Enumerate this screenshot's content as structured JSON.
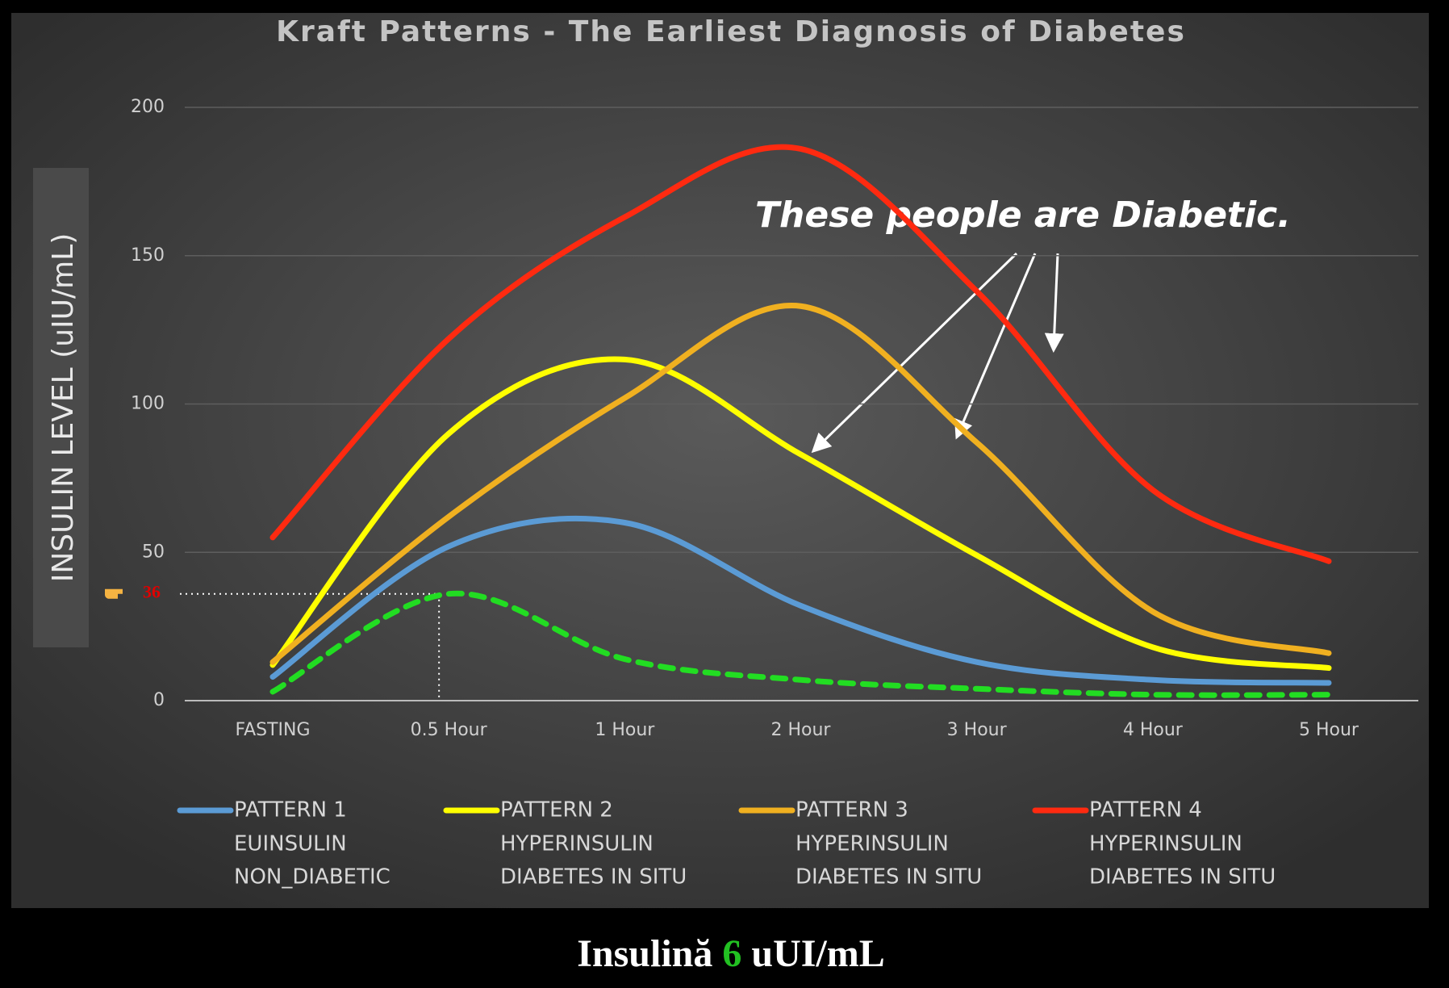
{
  "chart_data": {
    "type": "line",
    "title": "Kraft Patterns - The Earliest Diagnosis of Diabetes",
    "y_label": "INSULIN LEVEL (uIU/mL)",
    "categories": [
      "FASTING",
      "0.5 Hour",
      "1 Hour",
      "2 Hour",
      "3 Hour",
      "4 Hour",
      "5 Hour"
    ],
    "ylim": [
      0,
      200
    ],
    "yticks": [
      0,
      50,
      100,
      150,
      200
    ],
    "grid": true,
    "series": [
      {
        "name": "PATTERN 1",
        "lines": [
          "EUINSULIN",
          "NON_DIABETIC"
        ],
        "color": "#5b9bd5",
        "values": [
          8,
          52,
          60,
          32,
          13,
          7,
          6
        ]
      },
      {
        "name": "PATTERN 2",
        "lines": [
          "HYPERINSULIN",
          "DIABETES IN SITU"
        ],
        "color": "#ffff00",
        "values": [
          12,
          90,
          115,
          83,
          49,
          18,
          11
        ]
      },
      {
        "name": "PATTERN 3",
        "lines": [
          "HYPERINSULIN",
          "DIABETES IN SITU"
        ],
        "color": "#f0b020",
        "values": [
          13,
          62,
          102,
          133,
          87,
          30,
          16
        ]
      },
      {
        "name": "PATTERN 4",
        "lines": [
          "HYPERINSULIN",
          "DIABETES IN SITU"
        ],
        "color": "#ff2a10",
        "values": [
          55,
          122,
          163,
          186,
          138,
          71,
          47
        ]
      },
      {
        "color": "#22dd22",
        "dashed": true,
        "values": [
          3,
          36,
          14,
          7,
          4,
          2,
          2
        ]
      }
    ],
    "annotation": "These people are Diabetic.",
    "caption": {
      "prefix": "Insulină",
      "number": "6",
      "unit": "uUI/mL"
    }
  }
}
